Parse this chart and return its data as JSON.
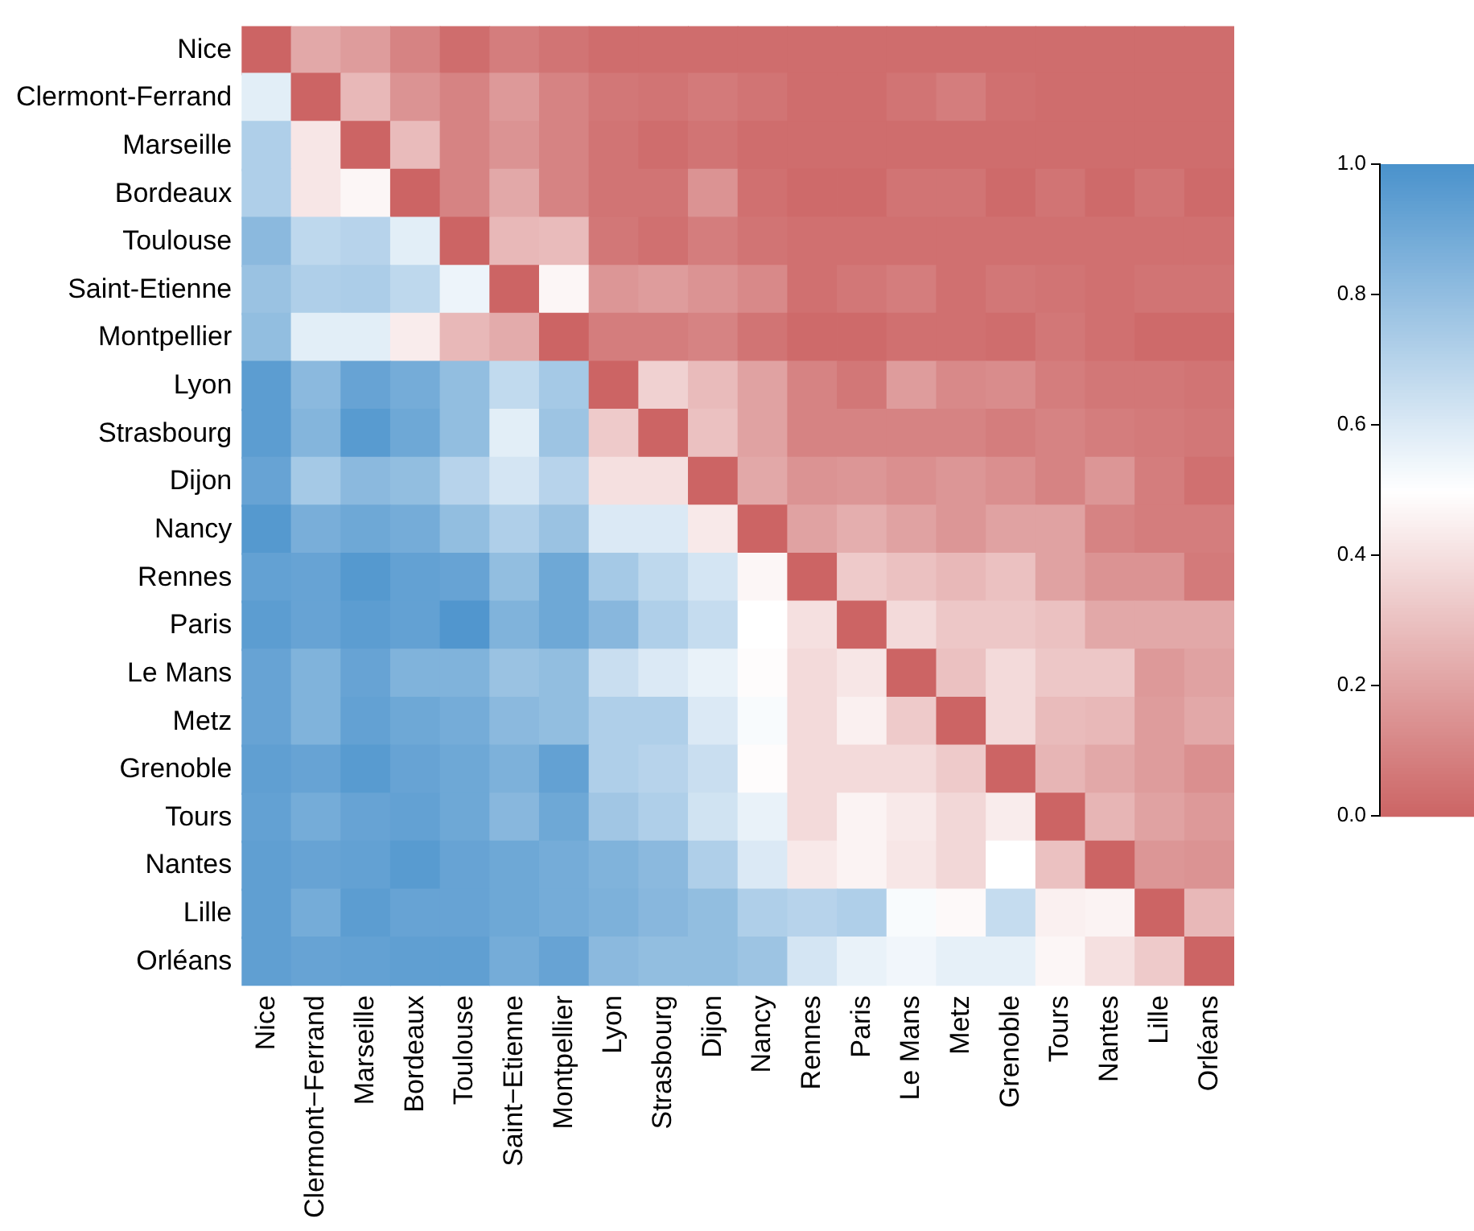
{
  "chart_data": {
    "type": "heatmap",
    "categories": [
      "Nice",
      "Clermont−Ferrand",
      "Marseille",
      "Bordeaux",
      "Toulouse",
      "Saint−Etienne",
      "Montpellier",
      "Lyon",
      "Strasbourg",
      "Dijon",
      "Nancy",
      "Rennes",
      "Paris",
      "Le Mans",
      "Metz",
      "Grenoble",
      "Tours",
      "Nantes",
      "Lille",
      "Orléans"
    ],
    "y_categories": [
      "Nice",
      "Clermont-Ferrand",
      "Marseille",
      "Bordeaux",
      "Toulouse",
      "Saint-Etienne",
      "Montpellier",
      "Lyon",
      "Strasbourg",
      "Dijon",
      "Nancy",
      "Rennes",
      "Paris",
      "Le Mans",
      "Metz",
      "Grenoble",
      "Tours",
      "Nantes",
      "Lille",
      "Orléans"
    ],
    "cells": [
      [
        0,
        0.22,
        0.18,
        0.1,
        0.03,
        0.08,
        0.05,
        0.03,
        0.03,
        0.03,
        0.03,
        0.03,
        0.03,
        0.03,
        0.03,
        0.03,
        0.03,
        0.03,
        0.03,
        0.03
      ],
      [
        0.58,
        0,
        0.27,
        0.15,
        0.1,
        0.17,
        0.1,
        0.06,
        0.05,
        0.07,
        0.05,
        0.03,
        0.03,
        0.05,
        0.08,
        0.04,
        0.03,
        0.03,
        0.03,
        0.03
      ],
      [
        0.72,
        0.42,
        0,
        0.28,
        0.1,
        0.15,
        0.1,
        0.05,
        0.03,
        0.05,
        0.03,
        0.03,
        0.03,
        0.03,
        0.03,
        0.03,
        0.03,
        0.03,
        0.03,
        0.03
      ],
      [
        0.72,
        0.42,
        0.47,
        0,
        0.1,
        0.22,
        0.1,
        0.05,
        0.05,
        0.15,
        0.04,
        0.02,
        0.02,
        0.05,
        0.05,
        0.02,
        0.05,
        0.02,
        0.05,
        0.02
      ],
      [
        0.82,
        0.68,
        0.7,
        0.58,
        0,
        0.27,
        0.28,
        0.06,
        0.04,
        0.08,
        0.05,
        0.04,
        0.04,
        0.04,
        0.04,
        0.04,
        0.04,
        0.04,
        0.04,
        0.04
      ],
      [
        0.78,
        0.72,
        0.73,
        0.68,
        0.55,
        0,
        0.47,
        0.16,
        0.18,
        0.15,
        0.12,
        0.04,
        0.06,
        0.08,
        0.04,
        0.06,
        0.05,
        0.04,
        0.05,
        0.05
      ],
      [
        0.8,
        0.58,
        0.58,
        0.44,
        0.27,
        0.23,
        0,
        0.08,
        0.08,
        0.1,
        0.05,
        0.02,
        0.02,
        0.04,
        0.04,
        0.03,
        0.06,
        0.04,
        0.02,
        0.02
      ],
      [
        0.95,
        0.82,
        0.92,
        0.88,
        0.8,
        0.67,
        0.75,
        0,
        0.35,
        0.28,
        0.2,
        0.1,
        0.06,
        0.18,
        0.12,
        0.13,
        0.08,
        0.06,
        0.06,
        0.05
      ],
      [
        0.95,
        0.84,
        0.96,
        0.9,
        0.8,
        0.58,
        0.77,
        0.33,
        0,
        0.3,
        0.2,
        0.1,
        0.1,
        0.1,
        0.1,
        0.08,
        0.1,
        0.08,
        0.07,
        0.06
      ],
      [
        0.92,
        0.75,
        0.82,
        0.8,
        0.7,
        0.62,
        0.7,
        0.4,
        0.4,
        0,
        0.22,
        0.15,
        0.16,
        0.14,
        0.16,
        0.14,
        0.1,
        0.16,
        0.08,
        0.04
      ],
      [
        0.97,
        0.87,
        0.9,
        0.88,
        0.8,
        0.72,
        0.78,
        0.6,
        0.6,
        0.43,
        0,
        0.2,
        0.24,
        0.2,
        0.16,
        0.2,
        0.2,
        0.1,
        0.08,
        0.08
      ],
      [
        0.93,
        0.92,
        0.97,
        0.93,
        0.92,
        0.8,
        0.9,
        0.75,
        0.68,
        0.62,
        0.47,
        0,
        0.33,
        0.3,
        0.27,
        0.3,
        0.2,
        0.15,
        0.15,
        0.07
      ],
      [
        0.95,
        0.92,
        0.95,
        0.93,
        0.98,
        0.85,
        0.9,
        0.83,
        0.72,
        0.66,
        0.5,
        0.4,
        0,
        0.38,
        0.32,
        0.32,
        0.3,
        0.22,
        0.22,
        0.22
      ],
      [
        0.92,
        0.85,
        0.92,
        0.85,
        0.85,
        0.78,
        0.8,
        0.65,
        0.6,
        0.56,
        0.49,
        0.38,
        0.42,
        0,
        0.3,
        0.38,
        0.32,
        0.32,
        0.17,
        0.2
      ],
      [
        0.92,
        0.85,
        0.93,
        0.9,
        0.88,
        0.82,
        0.8,
        0.72,
        0.72,
        0.6,
        0.52,
        0.38,
        0.45,
        0.33,
        0,
        0.38,
        0.28,
        0.27,
        0.18,
        0.22
      ],
      [
        0.94,
        0.92,
        0.96,
        0.92,
        0.9,
        0.86,
        0.93,
        0.72,
        0.7,
        0.65,
        0.49,
        0.38,
        0.38,
        0.38,
        0.33,
        0,
        0.26,
        0.22,
        0.18,
        0.14
      ],
      [
        0.93,
        0.88,
        0.92,
        0.93,
        0.9,
        0.83,
        0.9,
        0.76,
        0.72,
        0.63,
        0.56,
        0.38,
        0.46,
        0.43,
        0.37,
        0.44,
        0,
        0.26,
        0.2,
        0.17
      ],
      [
        0.94,
        0.92,
        0.93,
        0.96,
        0.92,
        0.9,
        0.88,
        0.85,
        0.82,
        0.72,
        0.6,
        0.43,
        0.46,
        0.42,
        0.37,
        0.5,
        0.3,
        0,
        0.16,
        0.15
      ],
      [
        0.94,
        0.88,
        0.95,
        0.92,
        0.92,
        0.9,
        0.88,
        0.86,
        0.83,
        0.8,
        0.72,
        0.7,
        0.72,
        0.52,
        0.48,
        0.66,
        0.45,
        0.46,
        0,
        0.27
      ],
      [
        0.94,
        0.92,
        0.93,
        0.94,
        0.94,
        0.88,
        0.92,
        0.82,
        0.8,
        0.8,
        0.77,
        0.62,
        0.56,
        0.54,
        0.57,
        0.57,
        0.47,
        0.4,
        0.33,
        0
      ]
    ],
    "clim": [
      0,
      1
    ],
    "cticks": [
      {
        "value": 0,
        "label": "0.0"
      },
      {
        "value": 0.2,
        "label": "0.2"
      },
      {
        "value": 0.4,
        "label": "0.4"
      },
      {
        "value": 0.6,
        "label": "0.6"
      },
      {
        "value": 0.8,
        "label": "0.8"
      },
      {
        "value": 1,
        "label": "1.0"
      }
    ]
  }
}
